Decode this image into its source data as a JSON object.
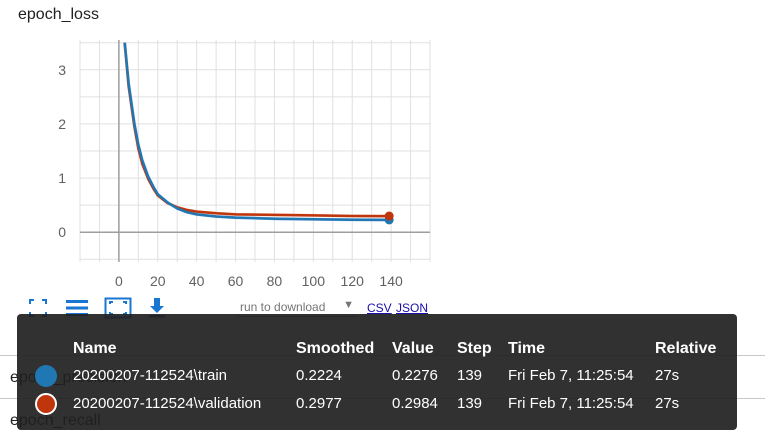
{
  "card": {
    "title": "epoch_loss"
  },
  "chart_data": {
    "type": "line",
    "title": "epoch_loss",
    "xlabel": "",
    "ylabel": "",
    "xlim": [
      -20,
      160
    ],
    "ylim": [
      -0.55,
      3.55
    ],
    "x_ticks": [
      0,
      20,
      40,
      60,
      80,
      100,
      120,
      140
    ],
    "y_ticks": [
      0,
      1,
      2,
      3
    ],
    "grid": true,
    "series": [
      {
        "name": "20200207-112524\\train",
        "color": "#1f77b4",
        "x": [
          3,
          5,
          8,
          10,
          12,
          15,
          18,
          20,
          25,
          30,
          35,
          40,
          50,
          60,
          80,
          100,
          120,
          139
        ],
        "y": [
          3.5,
          2.75,
          2.0,
          1.62,
          1.33,
          1.03,
          0.82,
          0.7,
          0.55,
          0.44,
          0.37,
          0.33,
          0.29,
          0.27,
          0.25,
          0.24,
          0.23,
          0.2276
        ]
      },
      {
        "name": "20200207-112524\\validation",
        "color": "#bf360c",
        "x": [
          3,
          5,
          8,
          10,
          12,
          15,
          18,
          20,
          25,
          30,
          35,
          40,
          50,
          60,
          80,
          100,
          120,
          139
        ],
        "y": [
          3.5,
          2.7,
          1.95,
          1.55,
          1.27,
          0.99,
          0.79,
          0.68,
          0.54,
          0.46,
          0.41,
          0.38,
          0.35,
          0.33,
          0.32,
          0.31,
          0.3,
          0.2984
        ]
      }
    ]
  },
  "toolbar": {
    "expand_icon": "fullscreen-icon",
    "data_icon": "list-icon",
    "fit_icon": "fit-domain-icon",
    "download_icon": "download-icon",
    "run_select_label": "run to download",
    "csv_label": "CSV",
    "json_label": "JSON"
  },
  "background_cards": {
    "precision_title": "epoch_precision",
    "recall_title": "epoch_recall"
  },
  "tooltip": {
    "headers": {
      "name": "Name",
      "smoothed": "Smoothed",
      "value": "Value",
      "step": "Step",
      "time": "Time",
      "relative": "Relative"
    },
    "rows": [
      {
        "color": "#1f77b4",
        "name": "20200207-112524\\train",
        "smoothed": "0.2224",
        "value": "0.2276",
        "step": "139",
        "time": "Fri Feb 7, 11:25:54",
        "relative": "27s"
      },
      {
        "color": "#bf360c",
        "name": "20200207-112524\\validation",
        "smoothed": "0.2977",
        "value": "0.2984",
        "step": "139",
        "time": "Fri Feb 7, 11:25:54",
        "relative": "27s"
      }
    ]
  }
}
